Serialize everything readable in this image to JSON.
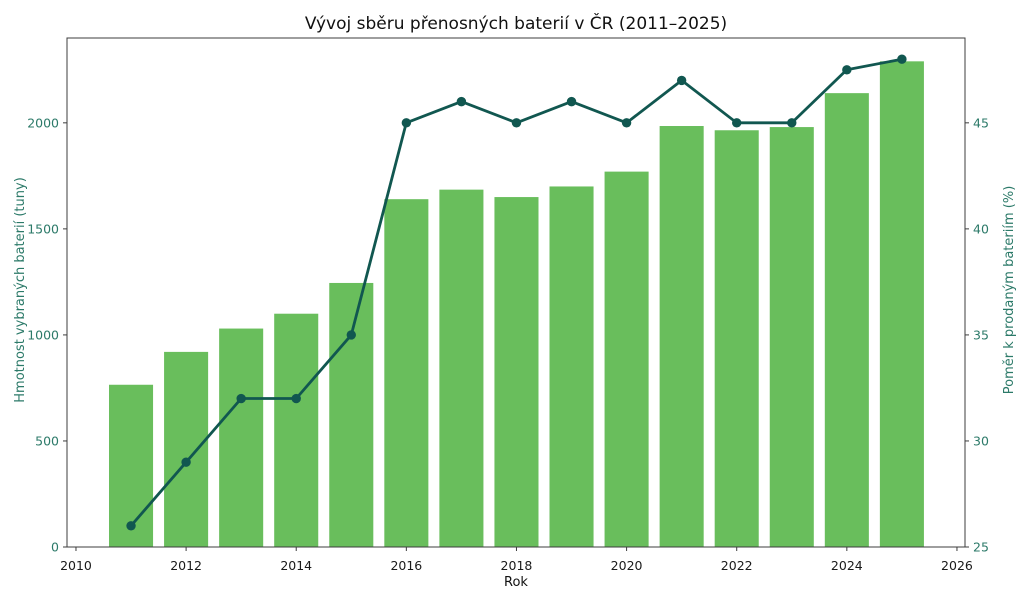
{
  "title": "Vývoj sběru přenosných baterií v ČR (2011–2025)",
  "colors": {
    "bar": "#69be5c",
    "line": "#115750",
    "axis_text": "#2c7a69",
    "x_tick_text": "#1a1a1a",
    "title_text": "#111111",
    "frame": "#3c3c3c",
    "background": "#ffffff"
  },
  "chart_data": {
    "type": "bar",
    "subtype": "bar-line-combo-dual-axis",
    "title": "Vývoj sběru přenosných baterií v ČR (2011–2025)",
    "xlabel": "Rok",
    "ylabel_left": "Hmotnost vybraných baterií (tuny)",
    "ylabel_right": "Poměr k prodaným bateriím (%)",
    "x": [
      2011,
      2012,
      2013,
      2014,
      2015,
      2016,
      2017,
      2018,
      2019,
      2020,
      2021,
      2022,
      2023,
      2024,
      2025
    ],
    "series": [
      {
        "name": "Hmotnost vybraných baterií (tuny)",
        "type": "bar",
        "axis": "left",
        "values": [
          765,
          920,
          1030,
          1100,
          1245,
          1640,
          1685,
          1650,
          1700,
          1770,
          1985,
          1965,
          1980,
          2140,
          2290
        ]
      },
      {
        "name": "Poměr k prodaným bateriím (%)",
        "type": "line",
        "axis": "right",
        "values": [
          26,
          29,
          32,
          32,
          35,
          45,
          46,
          45,
          46,
          45,
          47,
          45,
          45,
          47.5,
          48
        ]
      }
    ],
    "xlim": [
      2009.837,
      2026.146
    ],
    "ylim_left": [
      0,
      2400
    ],
    "ylim_right": [
      25,
      49
    ],
    "xticks": [
      2010,
      2012,
      2014,
      2016,
      2018,
      2020,
      2022,
      2024,
      2026
    ],
    "yticks_left": [
      0,
      500,
      1000,
      1500,
      2000
    ],
    "yticks_right": [
      25,
      30,
      35,
      40,
      45
    ],
    "bar_width_years": 0.8,
    "grid": false,
    "legend": "none"
  }
}
